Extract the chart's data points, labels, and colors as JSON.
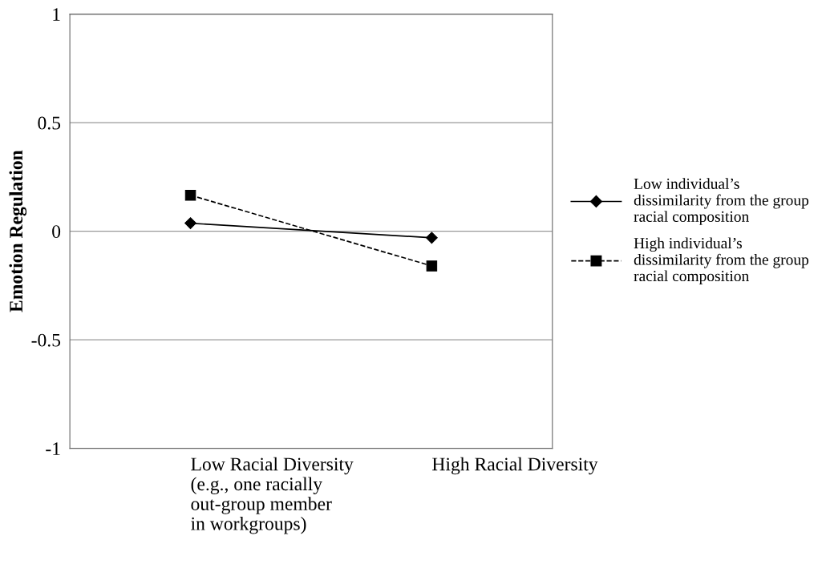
{
  "chart_data": {
    "type": "line",
    "ylabel": "Emotion Regulation",
    "categories": [
      "Low Racial Diversity\n(e.g., one racially\nout-group member\nin workgroups)",
      "High Racial Diversity"
    ],
    "series": [
      {
        "name": "Low individual’s\ndissimilarity from the group\nracial composition",
        "color": "#000000",
        "values": [
          0.037,
          -0.03
        ],
        "marker": "diamond",
        "line_style": "solid"
      },
      {
        "name": "High individual’s\ndissimilarity from the group\nracial composition",
        "color": "#000000",
        "values": [
          0.166,
          -0.16
        ],
        "marker": "square",
        "line_style": "dashed"
      }
    ],
    "ylim": [
      -1,
      1
    ],
    "yticks": [
      -1,
      -0.5,
      0,
      0.5,
      1
    ],
    "grid": "y",
    "legend": "right"
  }
}
